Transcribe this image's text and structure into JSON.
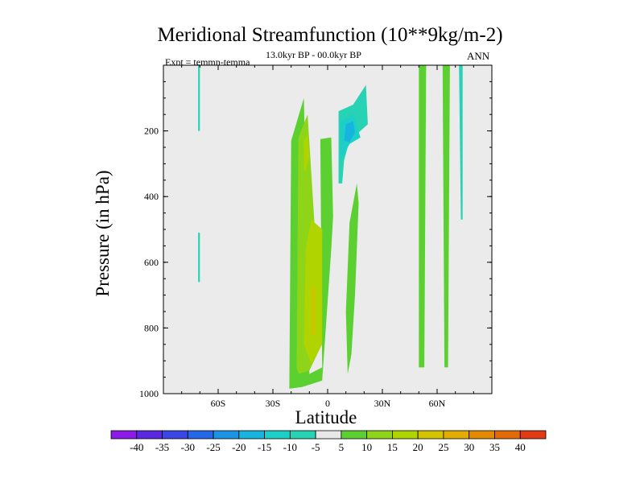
{
  "title": "Meridional Streamfunction (10**9kg/m-2)",
  "subtitle": "13.0kyr BP - 00.0kyr BP",
  "left_tag": "Expt = temmn-temma",
  "right_tag": "ANN",
  "chart_data": {
    "type": "heatmap",
    "title": "Meridional Streamfunction (10**9kg/m-2)",
    "xlabel": "Latitude",
    "ylabel": "Pressure (in hPa)",
    "xlim": [
      -90,
      90
    ],
    "ylim": [
      1000,
      0
    ],
    "x_ticks": [
      -60,
      -30,
      0,
      30,
      60
    ],
    "x_tick_labels": [
      "60S",
      "30S",
      "0",
      "30N",
      "60N"
    ],
    "y_ticks": [
      200,
      400,
      600,
      800,
      1000
    ],
    "y_tick_labels": [
      "200",
      "400",
      "600",
      "800",
      "1000"
    ],
    "colorbar": {
      "labels": [
        "-40",
        "-35",
        "-30",
        "-25",
        "-20",
        "-15",
        "-10",
        "-5",
        "5",
        "10",
        "15",
        "20",
        "25",
        "30",
        "35",
        "40"
      ],
      "colors": [
        "#8c1ae8",
        "#5a28e0",
        "#3a46e6",
        "#2468e8",
        "#1c94e6",
        "#18b4e0",
        "#1cd0c8",
        "#28d2b4",
        "#e8e8e8",
        "#5cd030",
        "#8ed418",
        "#b0d400",
        "#d4c400",
        "#e2ac00",
        "#e48a00",
        "#e46a08",
        "#e23a14"
      ]
    },
    "regions": [
      {
        "level": "5",
        "color": "#5cd030",
        "points": [
          [
            -21,
            985
          ],
          [
            -20,
            230
          ],
          [
            -13,
            100
          ],
          [
            -10,
            940
          ],
          [
            -3,
            920
          ],
          [
            -4,
            225
          ],
          [
            2,
            220
          ],
          [
            3,
            460
          ],
          [
            2,
            560
          ],
          [
            -3,
            960
          ],
          [
            -14,
            980
          ]
        ]
      },
      {
        "level": "10",
        "color": "#8ed418",
        "points": [
          [
            -17,
            920
          ],
          [
            -16,
            220
          ],
          [
            -11,
            150
          ],
          [
            -7,
            500
          ],
          [
            -3,
            500
          ],
          [
            -4,
            860
          ],
          [
            -10,
            930
          ],
          [
            -16,
            940
          ]
        ]
      },
      {
        "level": "15",
        "color": "#b0d400",
        "points": [
          [
            -13,
            850
          ],
          [
            -12,
            560
          ],
          [
            -9,
            470
          ],
          [
            -3,
            500
          ],
          [
            -3,
            850
          ],
          [
            -9,
            910
          ]
        ]
      },
      {
        "level": "15",
        "color": "#b0d400",
        "points": [
          [
            -13,
            320
          ],
          [
            -13,
            230
          ],
          [
            -11,
            210
          ],
          [
            -10,
            280
          ],
          [
            -12,
            320
          ]
        ]
      },
      {
        "level": "20",
        "color": "#cfc200",
        "points": [
          [
            -9,
            820
          ],
          [
            -9,
            680
          ],
          [
            -7,
            670
          ],
          [
            -7,
            820
          ]
        ]
      },
      {
        "level": "5",
        "color": "#5cd030",
        "points": [
          [
            11,
            940
          ],
          [
            10,
            750
          ],
          [
            12,
            480
          ],
          [
            16,
            360
          ],
          [
            17,
            420
          ],
          [
            15,
            700
          ],
          [
            13,
            880
          ]
        ]
      },
      {
        "level": "5",
        "color": "#5cd030",
        "points": [
          [
            50,
            920
          ],
          [
            50,
            0
          ],
          [
            54,
            0
          ],
          [
            53,
            920
          ]
        ]
      },
      {
        "level": "5",
        "color": "#5cd030",
        "points": [
          [
            64,
            920
          ],
          [
            63,
            0
          ],
          [
            67,
            0
          ],
          [
            66,
            920
          ]
        ]
      },
      {
        "level": "-5",
        "color": "#28d2b4",
        "points": [
          [
            6,
            360
          ],
          [
            6,
            140
          ],
          [
            14,
            120
          ],
          [
            21,
            60
          ],
          [
            22,
            180
          ],
          [
            12,
            230
          ],
          [
            9,
            290
          ],
          [
            8,
            360
          ]
        ]
      },
      {
        "level": "-10",
        "color": "#1cd0c8",
        "points": [
          [
            7,
            290
          ],
          [
            7,
            170
          ],
          [
            14,
            150
          ],
          [
            18,
            220
          ],
          [
            12,
            240
          ]
        ]
      },
      {
        "level": "-15",
        "color": "#18b4e0",
        "points": [
          [
            9,
            230
          ],
          [
            10,
            180
          ],
          [
            14,
            170
          ],
          [
            15,
            205
          ],
          [
            12,
            235
          ]
        ]
      },
      {
        "level": "-5",
        "color": "#28d2b4",
        "points": [
          [
            -71,
            200
          ],
          [
            -71,
            0
          ],
          [
            -70,
            0
          ],
          [
            -70,
            200
          ]
        ]
      },
      {
        "level": "-5",
        "color": "#28d2b4",
        "points": [
          [
            -71,
            660
          ],
          [
            -71,
            510
          ],
          [
            -70,
            510
          ],
          [
            -70,
            660
          ]
        ]
      },
      {
        "level": "-5",
        "color": "#28d2b4",
        "points": [
          [
            73,
            470
          ],
          [
            72,
            0
          ],
          [
            74,
            0
          ],
          [
            74,
            470
          ]
        ]
      }
    ]
  }
}
